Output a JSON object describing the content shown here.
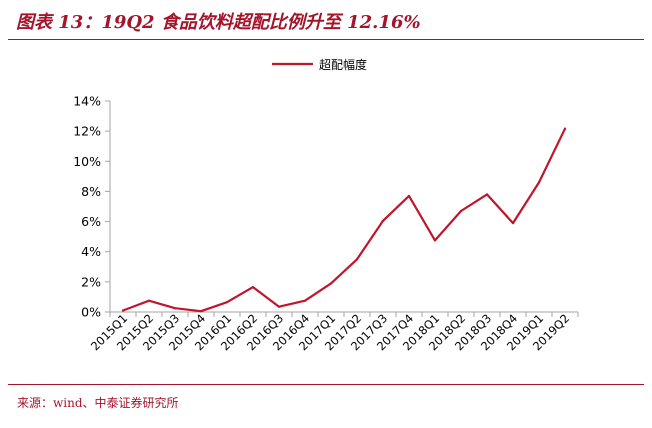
{
  "title": "图表 13：19Q2 食品饮料超配比例升至 12.16%",
  "source": "来源：wind、中泰证券研究所",
  "colors": {
    "accent": "#a4152b",
    "line": "#c0162c",
    "axis": "#a6a6a6",
    "text": "#000000"
  },
  "chart_data": {
    "type": "line",
    "categories": [
      "2015Q1",
      "2015Q2",
      "2015Q3",
      "2015Q4",
      "2016Q1",
      "2016Q2",
      "2016Q3",
      "2016Q4",
      "2017Q1",
      "2017Q2",
      "2017Q3",
      "2017Q4",
      "2018Q1",
      "2018Q2",
      "2018Q3",
      "2018Q4",
      "2019Q1",
      "2019Q2"
    ],
    "series": [
      {
        "name": "超配幅度",
        "values": [
          0.1,
          0.75,
          0.25,
          0.05,
          0.65,
          1.65,
          0.35,
          0.75,
          1.9,
          3.5,
          6.05,
          7.7,
          4.75,
          6.7,
          7.8,
          5.9,
          8.6,
          12.16
        ]
      }
    ],
    "xlabel": "",
    "ylabel": "",
    "ylim": [
      0,
      14
    ],
    "yticks": [
      0,
      2,
      4,
      6,
      8,
      10,
      12,
      14
    ],
    "ytick_labels": [
      "0%",
      "2%",
      "4%",
      "6%",
      "8%",
      "10%",
      "12%",
      "14%"
    ],
    "grid": false,
    "legend_position": "top-center"
  }
}
